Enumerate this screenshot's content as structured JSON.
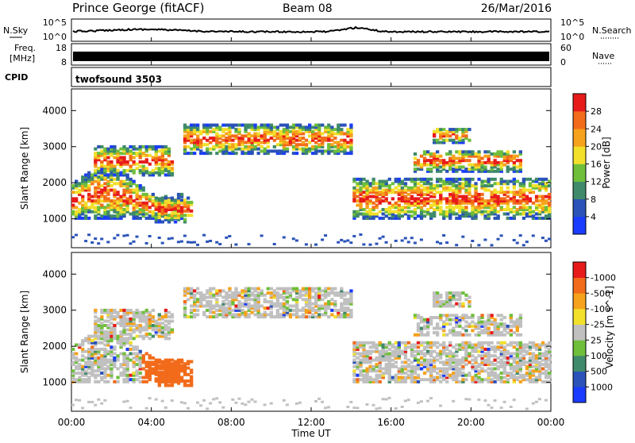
{
  "header": {
    "station": "Prince George (fitACF)",
    "beam": "Beam 08",
    "date": "26/Mar/2016"
  },
  "noise_panel": {
    "left_label": "N.Sky",
    "right_label": "N.Search",
    "left_ticks": [
      "10^5",
      "10^0"
    ],
    "right_ticks": [
      "10^5",
      "10^0"
    ]
  },
  "freq_panel": {
    "left_label_line1": "Freq.",
    "left_label_line2": "[MHz]",
    "right_label": "Nave",
    "left_ticks": [
      "18",
      "8"
    ],
    "right_ticks": [
      "60",
      "0"
    ]
  },
  "cpid_panel": {
    "left_label": "CPID",
    "program": "twofsound 3503"
  },
  "time_axis": {
    "label": "Time UT",
    "ticks": [
      "00:00",
      "04:00",
      "08:00",
      "12:00",
      "16:00",
      "20:00",
      "00:00"
    ]
  },
  "power_colorbar": {
    "label": "Power [dB]",
    "ticks": [
      "4",
      "8",
      "12",
      "16",
      "20",
      "24",
      "28"
    ],
    "colors": [
      "#1a3cff",
      "#2a52b8",
      "#3f8a6a",
      "#6fbf3a",
      "#f2e02a",
      "#f6a21c",
      "#f26b1a",
      "#e81b1b"
    ]
  },
  "velocity_colorbar": {
    "label": "Velocity [m s^-1]",
    "ticks": [
      "1000",
      "500",
      "100",
      "25",
      "-25",
      "-100",
      "-500",
      "-1000"
    ],
    "colors": [
      "#1a3cff",
      "#2a52b8",
      "#3f8a6a",
      "#6fbf3a",
      "#c0c0c0",
      "#f2e02a",
      "#f6a21c",
      "#f26b1a",
      "#e81b1b"
    ]
  },
  "chart_data": [
    {
      "type": "heatmap",
      "title": "",
      "xlabel": "Time UT",
      "ylabel": "Slant Range [km]",
      "x_range_hours": [
        0,
        24
      ],
      "ylim": [
        200,
        4600
      ],
      "y_ticks": [
        1000,
        2000,
        3000,
        4000
      ],
      "quantity": "Power [dB]",
      "value_range": [
        0,
        30
      ]
    },
    {
      "type": "heatmap",
      "title": "",
      "xlabel": "Time UT",
      "ylabel": "Slant Range [km]",
      "x_range_hours": [
        0,
        24
      ],
      "ylim": [
        200,
        4600
      ],
      "y_ticks": [
        1000,
        2000,
        3000,
        4000
      ],
      "quantity": "Velocity [m s^-1]",
      "value_range": [
        -1000,
        1000
      ]
    }
  ]
}
